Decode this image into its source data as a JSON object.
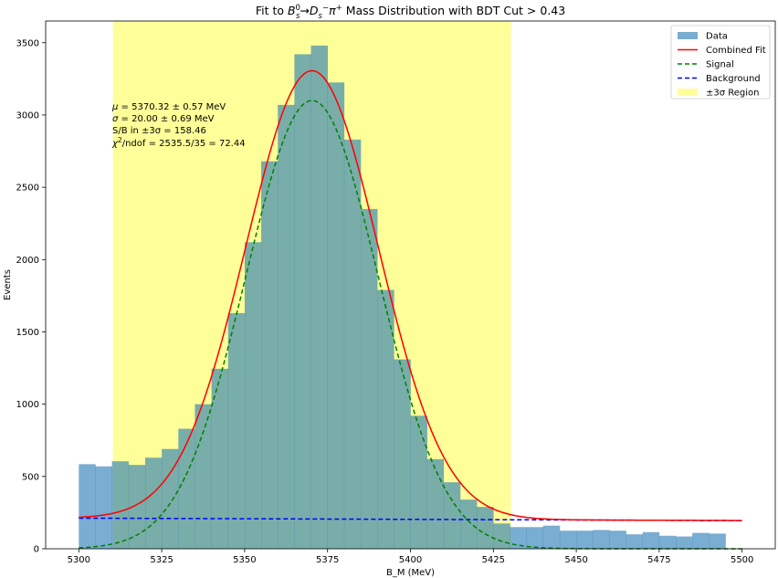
{
  "chart_data": {
    "type": "bar",
    "title": {
      "prefix": "Fit to ",
      "b": "B",
      "b_sup": "0",
      "b_sub": "s",
      "arrow": "→",
      "d": "D",
      "d_sub": "s",
      "d_sup": "−",
      "pi": "π",
      "pi_sup": "+",
      "suffix": " Mass Distribution with BDT Cut > 0.43"
    },
    "xlabel": "B_M (MeV)",
    "ylabel": "Events",
    "xlim": [
      5290,
      5510
    ],
    "ylim": [
      0,
      3650
    ],
    "x_ticks": [
      5300,
      5325,
      5350,
      5375,
      5400,
      5425,
      5450,
      5475,
      5500
    ],
    "y_ticks": [
      0,
      500,
      1000,
      1500,
      2000,
      2500,
      3000,
      3500
    ],
    "bin_edges_start": 5300,
    "bin_width": 5,
    "histogram": {
      "name": "Data",
      "color": "#1f77b4",
      "values": [
        585,
        570,
        605,
        580,
        630,
        690,
        830,
        1000,
        1245,
        1630,
        2120,
        2680,
        3070,
        3420,
        3480,
        3225,
        2830,
        2350,
        1790,
        1310,
        920,
        620,
        460,
        340,
        290,
        175,
        150,
        150,
        160,
        125,
        125,
        130,
        125,
        100,
        115,
        90,
        85,
        110,
        105
      ]
    },
    "region": {
      "name": "±3σ Region",
      "range": [
        5310.3,
        5430.3
      ],
      "color": "#ffff99"
    },
    "fit": {
      "mu": 5370.32,
      "sigma": 20.0,
      "signal_amplitude": 3100,
      "background_start": 212,
      "background_end": 195
    },
    "series": [
      {
        "name": "Combined Fit",
        "color": "#ff0000",
        "style": "solid"
      },
      {
        "name": "Signal",
        "color": "#008000",
        "style": "dashed"
      },
      {
        "name": "Background",
        "color": "#0000ff",
        "style": "dashed"
      }
    ],
    "legend_position": "top-right",
    "annotations": {
      "mu_symbol": "μ",
      "mu_text": " = 5370.32 ± 0.57 MeV",
      "sigma_symbol": "σ",
      "sigma_text": " = 20.00 ± 0.69 MeV",
      "sb_text": "S/B in ±3σ = 158.46",
      "chi_symbol": "χ",
      "chi_sup": "2",
      "chi_text": "/ndof = 2535.5/35 = 72.44"
    }
  }
}
